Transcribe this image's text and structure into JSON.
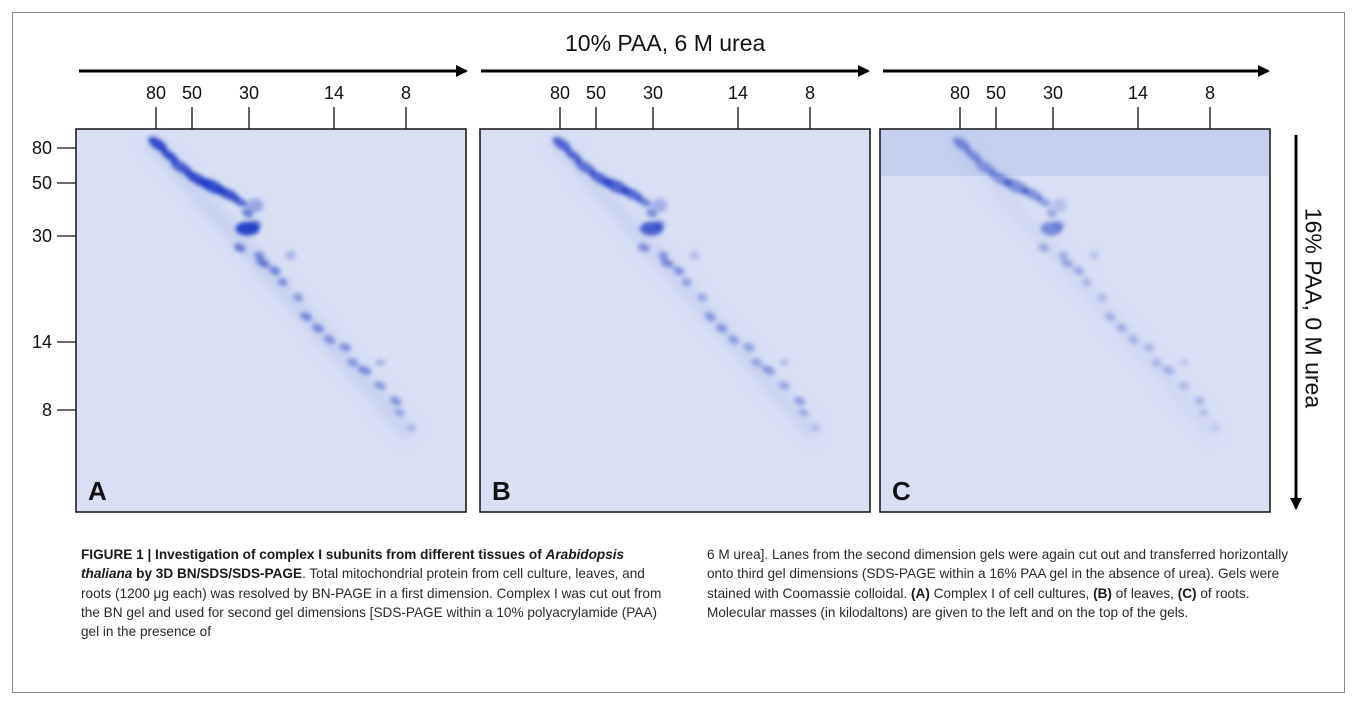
{
  "figure": {
    "top_label": "10% PAA, 6 M urea",
    "side_label": "16% PAA, 0 M urea",
    "top_ticks": [
      "80",
      "50",
      "30",
      "14",
      "8"
    ],
    "left_ticks": [
      "80",
      "50",
      "30",
      "14",
      "8"
    ],
    "panels": [
      {
        "letter": "A",
        "intensity": 1.0
      },
      {
        "letter": "B",
        "intensity": 0.82
      },
      {
        "letter": "C",
        "intensity": 0.55
      }
    ]
  },
  "caption": {
    "label": "FIGURE 1 | Investigation of complex I subunits from different tissues of ",
    "species": "Arabidopsis thaliana",
    "label_end": " by 3D BN/SDS/SDS-PAGE",
    "part1": ". Total mitochondrial protein from cell culture, leaves, and roots (1200 μg each) was resolved by BN-PAGE in a first dimension. Complex I was cut out from the BN gel and used for second gel dimensions [SDS-PAGE within a 10% polyacrylamide (PAA) gel in the presence of 6 M urea]. Lanes from the second dimension gels were again cut out and transferred horizontally onto third gel dimensions (SDS-PAGE within a 16% PAA gel in the absence of urea). Gels were stained with Coomassie colloidal. ",
    "ref_a": "(A)",
    "txt_a": " Complex I of cell cultures, ",
    "ref_b": "(B)",
    "txt_b": " of leaves, ",
    "ref_c": "(C)",
    "txt_c": " of roots. Molecular masses (in kilodaltons) are given to the left and on the top of the gels."
  }
}
